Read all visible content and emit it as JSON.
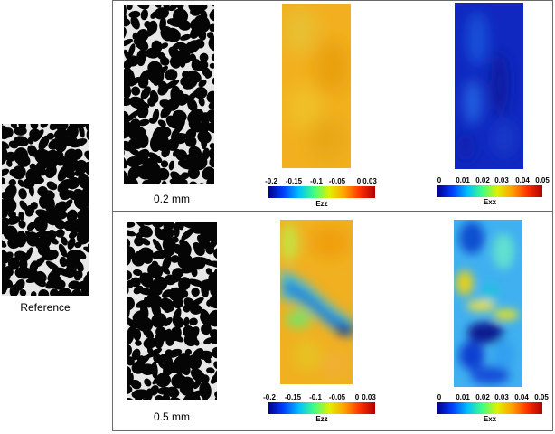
{
  "reference": {
    "label": "Reference"
  },
  "rows": [
    {
      "resolution_label": "0.2 mm",
      "ezz": {
        "ticks": [
          "-0.2",
          "-0.15",
          "-0.1",
          "-0.05",
          "0",
          "0.03"
        ],
        "name": "Ezz"
      },
      "exx": {
        "ticks": [
          "0",
          "0.01",
          "0.02",
          "0.03",
          "0.04",
          "0.05"
        ],
        "name": "Exx"
      }
    },
    {
      "resolution_label": "0.5 mm",
      "ezz": {
        "ticks": [
          "-0.2",
          "-0.15",
          "-0.1",
          "-0.05",
          "0",
          "0.03"
        ],
        "name": "Ezz"
      },
      "exx": {
        "ticks": [
          "0",
          "0.01",
          "0.02",
          "0.03",
          "0.04",
          "0.05"
        ],
        "name": "Exx"
      }
    }
  ],
  "colors": {
    "jet": [
      "#00008f",
      "#0040ff",
      "#00c0ff",
      "#40ff80",
      "#e0f000",
      "#ffa000",
      "#ff3000",
      "#b00000"
    ]
  }
}
